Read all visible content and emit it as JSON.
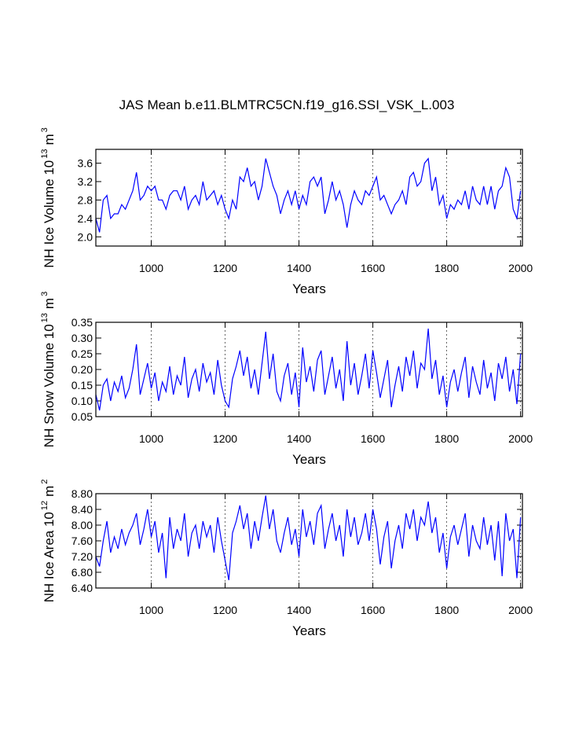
{
  "title": "JAS Mean b.e11.BLMTRC5CN.f19_g16.SSI_VSK_L.003",
  "chart_data": [
    {
      "type": "line",
      "ylabel": [
        "NH Ice Volume 10",
        "13",
        "m",
        "3"
      ],
      "xlabel": "Years",
      "xlim": [
        850,
        2005
      ],
      "xticks": [
        1000,
        1200,
        1400,
        1600,
        1800,
        2000
      ],
      "ylim": [
        1.8,
        3.9
      ],
      "yticks": [
        {
          "value": 2,
          "label": "2.0"
        },
        2.4,
        2.8,
        3.2,
        3.6
      ],
      "grid": "x",
      "x": [
        850,
        860,
        870,
        880,
        890,
        900,
        910,
        920,
        930,
        940,
        950,
        960,
        970,
        980,
        990,
        1000,
        1010,
        1020,
        1030,
        1040,
        1050,
        1060,
        1070,
        1080,
        1090,
        1100,
        1110,
        1120,
        1130,
        1140,
        1150,
        1160,
        1170,
        1180,
        1190,
        1200,
        1210,
        1220,
        1230,
        1240,
        1250,
        1260,
        1270,
        1280,
        1290,
        1300,
        1310,
        1320,
        1330,
        1340,
        1350,
        1360,
        1370,
        1380,
        1390,
        1400,
        1410,
        1420,
        1430,
        1440,
        1450,
        1460,
        1470,
        1480,
        1490,
        1500,
        1510,
        1520,
        1530,
        1540,
        1550,
        1560,
        1570,
        1580,
        1590,
        1600,
        1610,
        1620,
        1630,
        1640,
        1650,
        1660,
        1670,
        1680,
        1690,
        1700,
        1710,
        1720,
        1730,
        1740,
        1750,
        1760,
        1770,
        1780,
        1790,
        1800,
        1810,
        1820,
        1830,
        1840,
        1850,
        1860,
        1870,
        1880,
        1890,
        1900,
        1910,
        1920,
        1930,
        1940,
        1950,
        1960,
        1970,
        1980,
        1990,
        2000
      ],
      "series": [
        {
          "color": "#0000ff",
          "values": [
            2.4,
            2.1,
            2.8,
            2.9,
            2.4,
            2.5,
            2.5,
            2.7,
            2.6,
            2.8,
            3.0,
            3.4,
            2.8,
            2.9,
            3.1,
            3.0,
            3.1,
            2.8,
            2.8,
            2.6,
            2.9,
            3.0,
            3.0,
            2.8,
            3.1,
            2.6,
            2.8,
            2.9,
            2.7,
            3.2,
            2.8,
            2.9,
            3.0,
            2.7,
            2.9,
            2.6,
            2.4,
            2.8,
            2.6,
            3.3,
            3.2,
            3.5,
            3.1,
            3.2,
            2.8,
            3.1,
            3.7,
            3.4,
            3.1,
            2.9,
            2.5,
            2.8,
            3.0,
            2.7,
            3.0,
            2.6,
            2.9,
            2.7,
            3.2,
            3.3,
            3.1,
            3.3,
            2.5,
            2.8,
            3.2,
            2.8,
            3.0,
            2.7,
            2.2,
            2.7,
            3.0,
            2.8,
            2.7,
            3.0,
            2.9,
            3.1,
            3.3,
            2.8,
            2.9,
            2.7,
            2.5,
            2.7,
            2.8,
            3.0,
            2.7,
            3.3,
            3.4,
            3.1,
            3.2,
            3.6,
            3.7,
            3.0,
            3.3,
            2.7,
            2.9,
            2.4,
            2.7,
            2.6,
            2.8,
            2.7,
            3.0,
            2.6,
            3.1,
            2.8,
            2.7,
            3.1,
            2.7,
            3.1,
            2.6,
            3.0,
            3.1,
            3.5,
            3.3,
            2.6,
            2.4,
            3.0
          ]
        }
      ]
    },
    {
      "type": "line",
      "ylabel": [
        "NH Snow Volume 10",
        "13",
        "m",
        "3"
      ],
      "xlabel": "Years",
      "xlim": [
        850,
        2005
      ],
      "xticks": [
        1000,
        1200,
        1400,
        1600,
        1800,
        2000
      ],
      "ylim": [
        0.05,
        0.35
      ],
      "yticks": [
        0.05,
        {
          "value": 0.1,
          "label": "0.10"
        },
        0.15,
        {
          "value": 0.2,
          "label": "0.20"
        },
        0.25,
        {
          "value": 0.3,
          "label": "0.30"
        },
        0.35
      ],
      "grid": "x",
      "x": [
        850,
        860,
        870,
        880,
        890,
        900,
        910,
        920,
        930,
        940,
        950,
        960,
        970,
        980,
        990,
        1000,
        1010,
        1020,
        1030,
        1040,
        1050,
        1060,
        1070,
        1080,
        1090,
        1100,
        1110,
        1120,
        1130,
        1140,
        1150,
        1160,
        1170,
        1180,
        1190,
        1200,
        1210,
        1220,
        1230,
        1240,
        1250,
        1260,
        1270,
        1280,
        1290,
        1300,
        1310,
        1320,
        1330,
        1340,
        1350,
        1360,
        1370,
        1380,
        1390,
        1400,
        1410,
        1420,
        1430,
        1440,
        1450,
        1460,
        1470,
        1480,
        1490,
        1500,
        1510,
        1520,
        1530,
        1540,
        1550,
        1560,
        1570,
        1580,
        1590,
        1600,
        1610,
        1620,
        1630,
        1640,
        1650,
        1660,
        1670,
        1680,
        1690,
        1700,
        1710,
        1720,
        1730,
        1740,
        1750,
        1760,
        1770,
        1780,
        1790,
        1800,
        1810,
        1820,
        1830,
        1840,
        1850,
        1860,
        1870,
        1880,
        1890,
        1900,
        1910,
        1920,
        1930,
        1940,
        1950,
        1960,
        1970,
        1980,
        1990,
        2000
      ],
      "series": [
        {
          "color": "#0000ff",
          "values": [
            0.12,
            0.07,
            0.15,
            0.17,
            0.1,
            0.16,
            0.13,
            0.18,
            0.11,
            0.14,
            0.2,
            0.28,
            0.12,
            0.17,
            0.22,
            0.14,
            0.19,
            0.1,
            0.16,
            0.13,
            0.21,
            0.12,
            0.18,
            0.15,
            0.24,
            0.11,
            0.17,
            0.2,
            0.13,
            0.22,
            0.16,
            0.19,
            0.12,
            0.23,
            0.15,
            0.1,
            0.08,
            0.17,
            0.21,
            0.26,
            0.18,
            0.24,
            0.14,
            0.2,
            0.12,
            0.22,
            0.32,
            0.17,
            0.25,
            0.13,
            0.1,
            0.18,
            0.22,
            0.12,
            0.19,
            0.08,
            0.27,
            0.16,
            0.21,
            0.13,
            0.23,
            0.26,
            0.12,
            0.18,
            0.24,
            0.14,
            0.2,
            0.1,
            0.29,
            0.15,
            0.22,
            0.12,
            0.18,
            0.25,
            0.14,
            0.26,
            0.19,
            0.11,
            0.17,
            0.23,
            0.08,
            0.15,
            0.21,
            0.13,
            0.24,
            0.18,
            0.26,
            0.14,
            0.22,
            0.2,
            0.33,
            0.17,
            0.23,
            0.12,
            0.18,
            0.08,
            0.16,
            0.2,
            0.13,
            0.19,
            0.24,
            0.11,
            0.21,
            0.16,
            0.12,
            0.23,
            0.14,
            0.19,
            0.1,
            0.22,
            0.17,
            0.24,
            0.13,
            0.2,
            0.09,
            0.25
          ]
        }
      ]
    },
    {
      "type": "line",
      "ylabel": [
        "NH Ice Area 10",
        "12",
        "m",
        "2"
      ],
      "xlabel": "Years",
      "xlim": [
        850,
        2005
      ],
      "xticks": [
        1000,
        1200,
        1400,
        1600,
        1800,
        2000
      ],
      "ylim": [
        6.4,
        8.8
      ],
      "yticks": [
        {
          "value": 6.4,
          "label": "6.40"
        },
        {
          "value": 6.8,
          "label": "6.80"
        },
        {
          "value": 7.2,
          "label": "7.20"
        },
        {
          "value": 7.6,
          "label": "7.60"
        },
        {
          "value": 8,
          "label": "8.00"
        },
        {
          "value": 8.4,
          "label": "8.40"
        },
        {
          "value": 8.8,
          "label": "8.80"
        }
      ],
      "grid": "x",
      "x": [
        850,
        860,
        870,
        880,
        890,
        900,
        910,
        920,
        930,
        940,
        950,
        960,
        970,
        980,
        990,
        1000,
        1010,
        1020,
        1030,
        1040,
        1050,
        1060,
        1070,
        1080,
        1090,
        1100,
        1110,
        1120,
        1130,
        1140,
        1150,
        1160,
        1170,
        1180,
        1190,
        1200,
        1210,
        1220,
        1230,
        1240,
        1250,
        1260,
        1270,
        1280,
        1290,
        1300,
        1310,
        1320,
        1330,
        1340,
        1350,
        1360,
        1370,
        1380,
        1390,
        1400,
        1410,
        1420,
        1430,
        1440,
        1450,
        1460,
        1470,
        1480,
        1490,
        1500,
        1510,
        1520,
        1530,
        1540,
        1550,
        1560,
        1570,
        1580,
        1590,
        1600,
        1610,
        1620,
        1630,
        1640,
        1650,
        1660,
        1670,
        1680,
        1690,
        1700,
        1710,
        1720,
        1730,
        1740,
        1750,
        1760,
        1770,
        1780,
        1790,
        1800,
        1810,
        1820,
        1830,
        1840,
        1850,
        1860,
        1870,
        1880,
        1890,
        1900,
        1910,
        1920,
        1930,
        1940,
        1950,
        1960,
        1970,
        1980,
        1990,
        2000
      ],
      "series": [
        {
          "color": "#0000ff",
          "values": [
            7.2,
            6.95,
            7.6,
            8.1,
            7.3,
            7.7,
            7.4,
            7.9,
            7.5,
            7.8,
            8.0,
            8.3,
            7.5,
            7.9,
            8.4,
            7.7,
            8.1,
            7.3,
            7.8,
            6.65,
            8.2,
            7.4,
            7.9,
            7.6,
            8.3,
            7.2,
            7.8,
            8.0,
            7.4,
            8.1,
            7.7,
            8.0,
            7.3,
            8.2,
            7.6,
            7.1,
            6.6,
            7.8,
            8.1,
            8.5,
            7.9,
            8.3,
            7.4,
            8.1,
            7.6,
            8.2,
            8.75,
            7.9,
            8.4,
            7.6,
            7.3,
            7.8,
            8.2,
            7.5,
            7.9,
            7.2,
            8.4,
            7.7,
            8.1,
            7.5,
            8.3,
            8.5,
            7.4,
            7.9,
            8.3,
            7.6,
            8.0,
            7.2,
            8.4,
            7.7,
            8.2,
            7.5,
            7.8,
            8.3,
            7.6,
            8.4,
            7.9,
            7.0,
            7.7,
            8.1,
            6.9,
            7.6,
            8.0,
            7.4,
            8.3,
            7.9,
            8.4,
            7.6,
            8.2,
            8.0,
            8.6,
            7.8,
            8.2,
            7.3,
            7.8,
            6.9,
            7.7,
            8.0,
            7.5,
            7.9,
            8.3,
            7.2,
            8.0,
            7.6,
            7.4,
            8.2,
            7.5,
            8.0,
            7.1,
            8.1,
            6.7,
            8.3,
            7.6,
            7.9,
            6.65,
            8.2
          ]
        }
      ]
    }
  ]
}
